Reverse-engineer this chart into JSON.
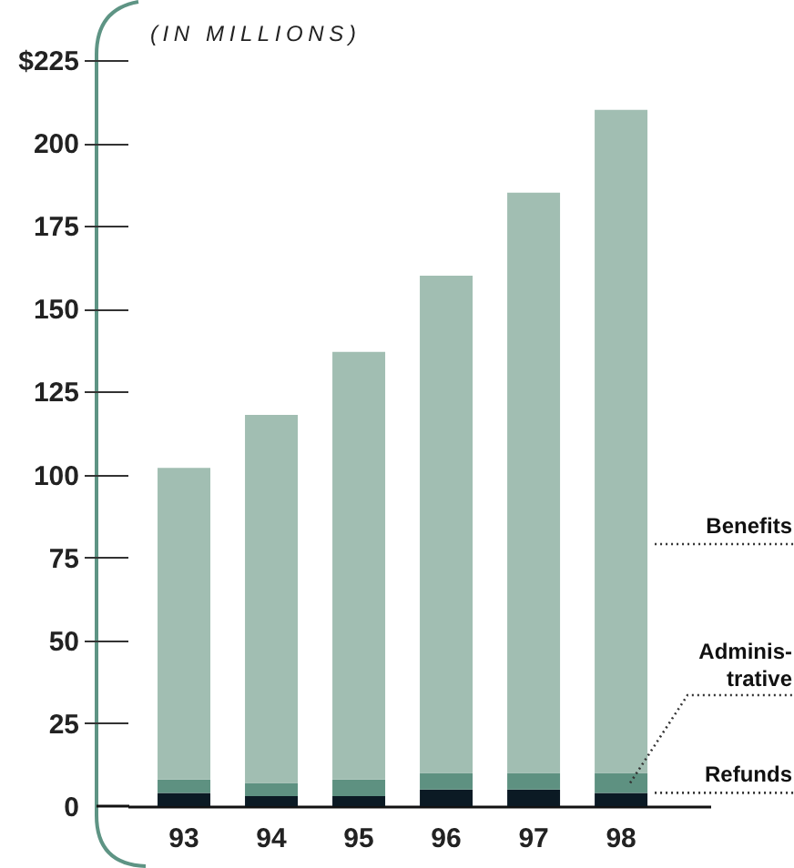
{
  "chart_data": {
    "type": "bar",
    "ylabel": "(IN MILLIONS)",
    "categories": [
      "93",
      "94",
      "95",
      "96",
      "97",
      "98"
    ],
    "stacked": true,
    "series": [
      {
        "name": "Refunds",
        "color": "#0b1a24",
        "values": [
          4,
          3,
          3,
          5,
          5,
          4
        ]
      },
      {
        "name": "Adminis-\ntrative",
        "color": "#5e9181",
        "values": [
          4,
          4,
          5,
          5,
          5,
          6
        ]
      },
      {
        "name": "Benefits",
        "color": "#a1beb2",
        "values": [
          94,
          111,
          129,
          150,
          175,
          200
        ]
      }
    ],
    "ylim": [
      0,
      225
    ],
    "yticks": [
      0,
      25,
      50,
      75,
      100,
      125,
      150,
      175,
      200,
      {
        "value": 225,
        "label": "$225"
      }
    ],
    "grid": false
  }
}
